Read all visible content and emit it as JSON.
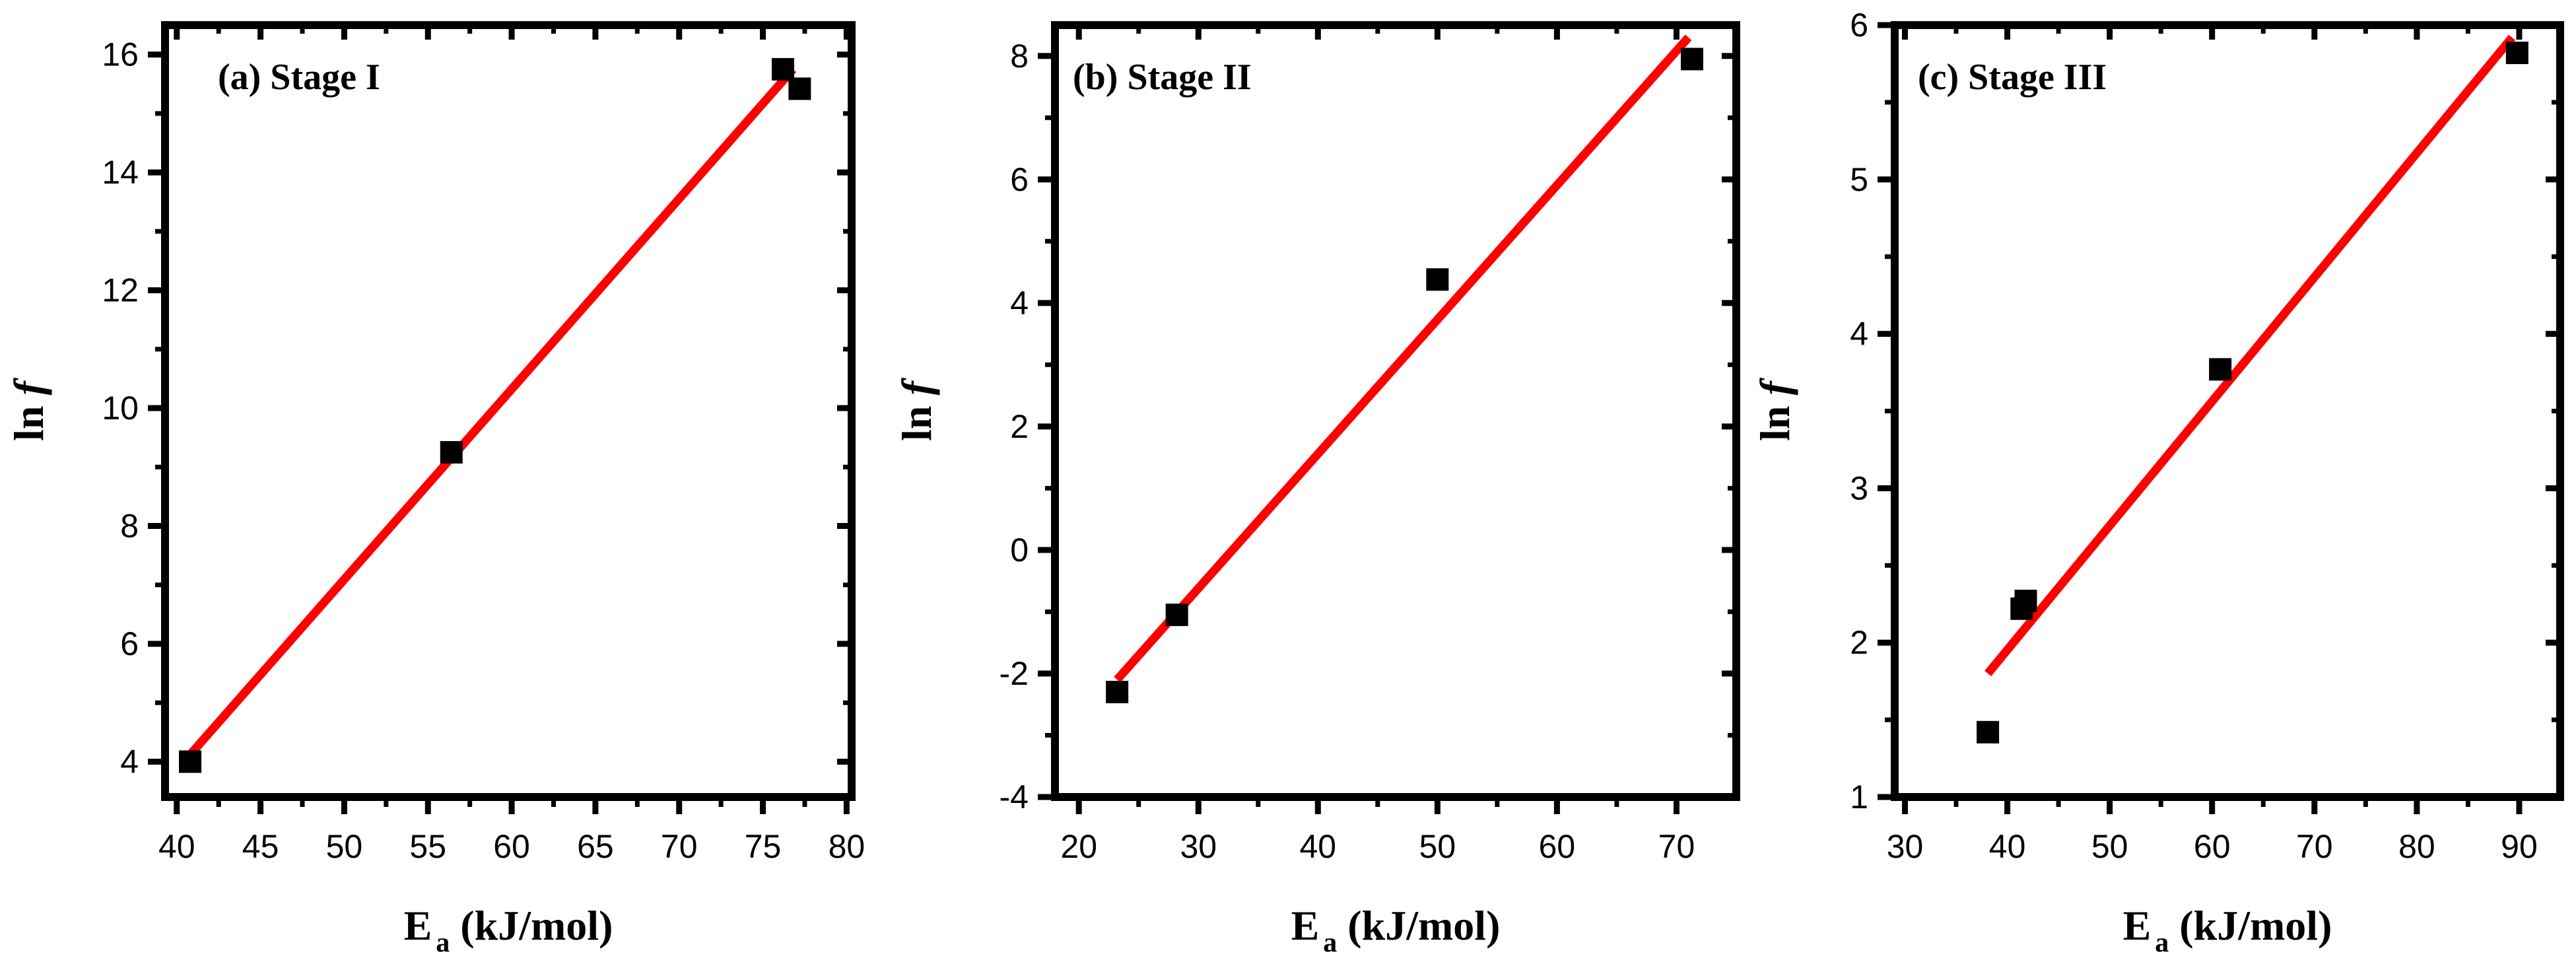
{
  "chart_data": [
    {
      "type": "scatter",
      "title": "(a)  Stage I",
      "xlabel": {
        "main": "E",
        "sub": "a",
        "rest": " (kJ/mol)"
      },
      "ylabel": {
        "main": "ln",
        "ital": "f"
      },
      "xlim": [
        39.3,
        80.3
      ],
      "ylim": [
        3.4,
        16.5
      ],
      "xticks": [
        40,
        45,
        50,
        55,
        60,
        65,
        70,
        75,
        80
      ],
      "yticks": [
        4,
        6,
        8,
        10,
        12,
        14,
        16
      ],
      "series": [
        {
          "marker": "square",
          "color": "#000000",
          "points": [
            [
              40.8,
              4.0
            ],
            [
              56.4,
              9.25
            ],
            [
              76.2,
              15.75
            ],
            [
              77.2,
              15.42
            ]
          ]
        }
      ],
      "fit_line": {
        "color": "#ff0000",
        "from": [
          40.8,
          4.12
        ],
        "to": [
          76.8,
          15.75
        ]
      }
    },
    {
      "type": "scatter",
      "title": "(b)  Stage II",
      "xlabel": {
        "main": "E",
        "sub": "a",
        "rest": " (kJ/mol)"
      },
      "ylabel": {
        "main": "ln",
        "ital": "f"
      },
      "xlim": [
        18.0,
        75.0
      ],
      "ylim": [
        -4.0,
        8.5
      ],
      "xticks": [
        20,
        30,
        40,
        50,
        60,
        70
      ],
      "yticks": [
        -4,
        -2,
        0,
        2,
        4,
        6,
        8
      ],
      "series": [
        {
          "marker": "square",
          "color": "#000000",
          "points": [
            [
              23.2,
              -2.3
            ],
            [
              28.2,
              -1.05
            ],
            [
              50.0,
              4.38
            ],
            [
              71.3,
              7.95
            ]
          ]
        }
      ],
      "fit_line": {
        "color": "#ff0000",
        "from": [
          23.2,
          -2.1
        ],
        "to": [
          71.0,
          8.3
        ]
      }
    },
    {
      "type": "scatter",
      "title": "(c)  Stage III",
      "xlabel": {
        "main": "E",
        "sub": "a",
        "rest": " (kJ/mol)"
      },
      "ylabel": {
        "main": "ln",
        "ital": "f"
      },
      "xlim": [
        29.0,
        94.0
      ],
      "ylim": [
        1.0,
        6.0
      ],
      "xticks": [
        30,
        40,
        50,
        60,
        70,
        80,
        90
      ],
      "yticks": [
        1,
        2,
        3,
        4,
        5,
        6
      ],
      "series": [
        {
          "marker": "square",
          "color": "#000000",
          "points": [
            [
              38.1,
              1.42
            ],
            [
              41.4,
              2.22
            ],
            [
              41.8,
              2.27
            ],
            [
              60.8,
              3.77
            ],
            [
              89.8,
              5.82
            ]
          ]
        }
      ],
      "fit_line": {
        "color": "#ff0000",
        "from": [
          38.1,
          1.8
        ],
        "to": [
          89.3,
          5.92
        ]
      }
    }
  ]
}
